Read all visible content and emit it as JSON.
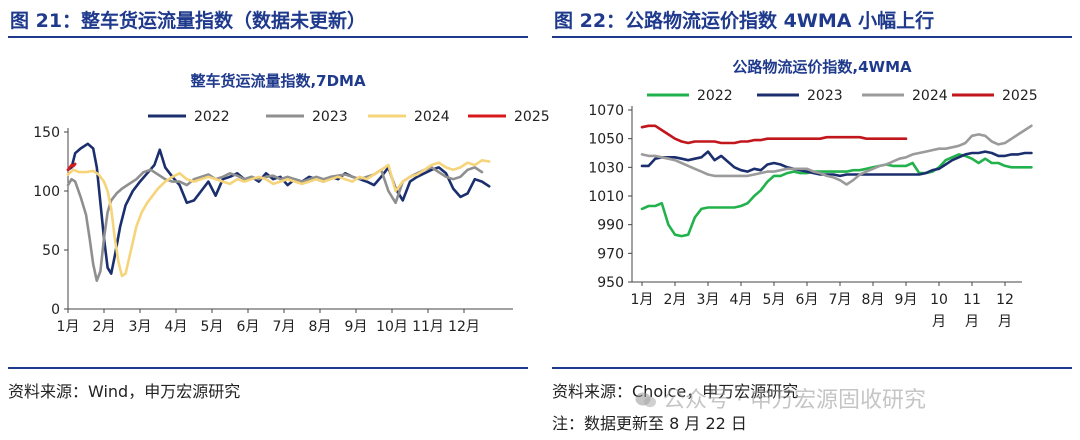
{
  "left": {
    "fig_title": "图 21：整车货运流量指数（数据未更新）",
    "source": "资料来源：Wind，申万宏源研究",
    "chart_data": {
      "type": "line",
      "title": "整车货运流量指数,7DMA",
      "xlabel": "",
      "ylabel": "",
      "ylim": [
        0,
        150
      ],
      "yticks": [
        0,
        50,
        100,
        150
      ],
      "categories": [
        "1月",
        "2月",
        "3月",
        "4月",
        "5月",
        "6月",
        "7月",
        "8月",
        "9月",
        "10月",
        "11月",
        "12月"
      ],
      "grid": false,
      "legend_position": "top",
      "series": [
        {
          "name": "2022",
          "color": "#1b2f6e",
          "x": [
            1,
            1.1,
            1.2,
            1.35,
            1.55,
            1.7,
            1.8,
            1.9,
            2.0,
            2.1,
            2.2,
            2.3,
            2.45,
            2.6,
            2.8,
            3.0,
            3.2,
            3.4,
            3.55,
            3.7,
            3.9,
            4.1,
            4.3,
            4.5,
            4.7,
            4.9,
            5.1,
            5.3,
            5.5,
            5.7,
            5.9,
            6.1,
            6.3,
            6.5,
            6.7,
            6.9,
            7.1,
            7.3,
            7.5,
            7.7,
            7.9,
            8.1,
            8.3,
            8.5,
            8.7,
            8.9,
            9.1,
            9.3,
            9.5,
            9.7,
            9.9,
            10.1,
            10.3,
            10.5,
            10.7,
            10.9,
            11.1,
            11.3,
            11.5,
            11.7,
            11.9,
            12.1,
            12.3,
            12.5,
            12.7
          ],
          "values": [
            118,
            120,
            132,
            136,
            140,
            136,
            120,
            90,
            60,
            35,
            30,
            45,
            70,
            88,
            100,
            108,
            115,
            122,
            135,
            120,
            112,
            105,
            90,
            92,
            100,
            108,
            96,
            110,
            112,
            115,
            110,
            112,
            108,
            115,
            110,
            112,
            105,
            110,
            108,
            112,
            110,
            108,
            112,
            110,
            115,
            112,
            110,
            108,
            105,
            112,
            120,
            102,
            92,
            108,
            112,
            115,
            118,
            120,
            115,
            102,
            95,
            98,
            110,
            108,
            104
          ]
        },
        {
          "name": "2023",
          "color": "#8f8f8f",
          "x": [
            1,
            1.1,
            1.2,
            1.35,
            1.5,
            1.6,
            1.7,
            1.8,
            1.9,
            2.0,
            2.1,
            2.2,
            2.35,
            2.5,
            2.7,
            2.9,
            3.1,
            3.3,
            3.5,
            3.7,
            3.9,
            4.1,
            4.3,
            4.5,
            4.7,
            4.9,
            5.1,
            5.3,
            5.5,
            5.7,
            5.9,
            6.1,
            6.3,
            6.5,
            6.7,
            6.9,
            7.1,
            7.3,
            7.5,
            7.7,
            7.9,
            8.1,
            8.3,
            8.5,
            8.7,
            8.9,
            9.1,
            9.3,
            9.5,
            9.7,
            9.9,
            10.1,
            10.3,
            10.5,
            10.7,
            10.9,
            11.1,
            11.3,
            11.5,
            11.7,
            11.9,
            12.1,
            12.3,
            12.5
          ],
          "values": [
            105,
            110,
            108,
            95,
            80,
            60,
            38,
            24,
            32,
            60,
            82,
            92,
            98,
            102,
            106,
            110,
            116,
            118,
            114,
            110,
            108,
            108,
            105,
            110,
            112,
            114,
            110,
            112,
            115,
            113,
            110,
            112,
            110,
            112,
            113,
            110,
            112,
            110,
            108,
            110,
            112,
            110,
            112,
            113,
            114,
            112,
            110,
            112,
            114,
            118,
            100,
            90,
            108,
            112,
            115,
            118,
            120,
            116,
            112,
            110,
            112,
            118,
            120,
            116
          ]
        },
        {
          "name": "2024",
          "color": "#f6d47a",
          "x": [
            1,
            1.15,
            1.3,
            1.5,
            1.7,
            1.85,
            2.0,
            2.1,
            2.2,
            2.3,
            2.4,
            2.5,
            2.6,
            2.75,
            2.9,
            3.05,
            3.2,
            3.35,
            3.5,
            3.7,
            3.9,
            4.1,
            4.3,
            4.5,
            4.7,
            4.9,
            5.1,
            5.3,
            5.5,
            5.7,
            5.9,
            6.1,
            6.3,
            6.5,
            6.7,
            6.9,
            7.1,
            7.3,
            7.5,
            7.7,
            7.9,
            8.1,
            8.3,
            8.5,
            8.7,
            8.9,
            9.1,
            9.3,
            9.5,
            9.7,
            9.9,
            10.1,
            10.3,
            10.5,
            10.7,
            10.9,
            11.1,
            11.3,
            11.5,
            11.7,
            11.9,
            12.1,
            12.3,
            12.5,
            12.7
          ],
          "values": [
            114,
            118,
            116,
            116,
            117,
            114,
            108,
            100,
            85,
            60,
            40,
            28,
            30,
            50,
            70,
            82,
            90,
            96,
            102,
            108,
            112,
            115,
            110,
            108,
            110,
            112,
            110,
            108,
            106,
            110,
            108,
            110,
            112,
            110,
            106,
            108,
            110,
            108,
            106,
            108,
            110,
            108,
            110,
            112,
            110,
            108,
            112,
            110,
            114,
            118,
            122,
            100,
            108,
            112,
            114,
            118,
            122,
            124,
            120,
            118,
            120,
            124,
            122,
            126,
            125
          ]
        },
        {
          "name": "2025",
          "color": "#d7191c",
          "x": [
            1,
            1.05,
            1.1,
            1.15,
            1.2
          ],
          "values": [
            118,
            120,
            122,
            121,
            123
          ]
        }
      ]
    }
  },
  "right": {
    "fig_title": "图 22：公路物流运价指数 4WMA 小幅上行",
    "source": "资料来源：Choice，申万宏源研究",
    "note": "注：数据更新至 8 月 22 日",
    "chart_data": {
      "type": "line",
      "title": "公路物流运价指数,4WMA",
      "xlabel": "",
      "ylabel": "",
      "ylim": [
        950,
        1070
      ],
      "yticks": [
        950,
        970,
        990,
        1010,
        1030,
        1050,
        1070
      ],
      "categories": [
        "1月",
        "2月",
        "3月",
        "4月",
        "5月",
        "6月",
        "7月",
        "8月",
        "9月",
        "10 月",
        "11 月",
        "12 月"
      ],
      "grid": false,
      "legend_position": "top",
      "series": [
        {
          "name": "2022",
          "color": "#22b24c",
          "x": [
            1,
            1.2,
            1.4,
            1.6,
            1.8,
            2.0,
            2.2,
            2.4,
            2.6,
            2.8,
            3.0,
            3.2,
            3.4,
            3.6,
            3.8,
            4.0,
            4.2,
            4.4,
            4.6,
            4.8,
            5.0,
            5.2,
            5.4,
            5.6,
            5.8,
            6.0,
            6.2,
            6.4,
            6.6,
            6.8,
            7.0,
            7.2,
            7.4,
            7.6,
            7.8,
            8.0,
            8.2,
            8.4,
            8.6,
            8.8,
            9.0,
            9.2,
            9.4,
            9.6,
            9.8,
            10.0,
            10.2,
            10.4,
            10.6,
            10.8,
            11.0,
            11.2,
            11.4,
            11.6,
            11.8,
            12.0,
            12.2,
            12.4,
            12.6,
            12.8
          ],
          "values": [
            1001,
            1003,
            1003,
            1005,
            990,
            983,
            982,
            983,
            995,
            1001,
            1002,
            1002,
            1002,
            1002,
            1002,
            1003,
            1005,
            1010,
            1014,
            1020,
            1024,
            1024,
            1026,
            1027,
            1026,
            1026,
            1027,
            1027,
            1027,
            1027,
            1027,
            1027,
            1028,
            1028,
            1029,
            1030,
            1031,
            1032,
            1031,
            1031,
            1031,
            1033,
            1026,
            1026,
            1027,
            1030,
            1035,
            1037,
            1039,
            1038,
            1036,
            1033,
            1036,
            1033,
            1033,
            1031,
            1030,
            1030,
            1030,
            1030
          ]
        },
        {
          "name": "2023",
          "color": "#1b2f6e",
          "x": [
            1,
            1.2,
            1.4,
            1.6,
            1.8,
            2.0,
            2.2,
            2.4,
            2.6,
            2.8,
            3.0,
            3.2,
            3.4,
            3.6,
            3.8,
            4.0,
            4.2,
            4.4,
            4.6,
            4.8,
            5.0,
            5.2,
            5.4,
            5.6,
            5.8,
            6.0,
            6.2,
            6.4,
            6.6,
            6.8,
            7.0,
            7.2,
            7.4,
            7.6,
            7.8,
            8.0,
            8.2,
            8.4,
            8.6,
            8.8,
            9.0,
            9.2,
            9.4,
            9.6,
            9.8,
            10.0,
            10.2,
            10.4,
            10.6,
            10.8,
            11.0,
            11.2,
            11.4,
            11.6,
            11.8,
            12.0,
            12.2,
            12.4,
            12.6,
            12.8
          ],
          "values": [
            1031,
            1031,
            1036,
            1037,
            1037,
            1037,
            1036,
            1035,
            1036,
            1037,
            1041,
            1035,
            1038,
            1034,
            1030,
            1028,
            1027,
            1029,
            1028,
            1032,
            1033,
            1032,
            1030,
            1029,
            1028,
            1027,
            1026,
            1025,
            1025,
            1025,
            1024,
            1025,
            1025,
            1025,
            1025,
            1025,
            1025,
            1025,
            1025,
            1025,
            1025,
            1025,
            1025,
            1026,
            1028,
            1029,
            1032,
            1035,
            1037,
            1039,
            1040,
            1040,
            1041,
            1040,
            1038,
            1038,
            1039,
            1039,
            1040,
            1040
          ]
        },
        {
          "name": "2024",
          "color": "#9b9b9b",
          "x": [
            1,
            1.2,
            1.4,
            1.6,
            1.8,
            2.0,
            2.2,
            2.4,
            2.6,
            2.8,
            3.0,
            3.2,
            3.4,
            3.6,
            3.8,
            4.0,
            4.2,
            4.4,
            4.6,
            4.8,
            5.0,
            5.2,
            5.4,
            5.6,
            5.8,
            6.0,
            6.2,
            6.4,
            6.6,
            6.8,
            7.0,
            7.2,
            7.4,
            7.6,
            7.8,
            8.0,
            8.2,
            8.4,
            8.6,
            8.8,
            9.0,
            9.2,
            9.4,
            9.6,
            9.8,
            10.0,
            10.2,
            10.4,
            10.6,
            10.8,
            11.0,
            11.2,
            11.4,
            11.6,
            11.8,
            12.0,
            12.2,
            12.4,
            12.6,
            12.8
          ],
          "values": [
            1039,
            1038,
            1038,
            1037,
            1036,
            1035,
            1033,
            1031,
            1029,
            1027,
            1025,
            1024,
            1024,
            1024,
            1024,
            1024,
            1024,
            1025,
            1026,
            1027,
            1027,
            1028,
            1029,
            1029,
            1029,
            1029,
            1027,
            1026,
            1024,
            1023,
            1021,
            1018,
            1021,
            1025,
            1027,
            1029,
            1031,
            1032,
            1034,
            1036,
            1037,
            1039,
            1040,
            1041,
            1042,
            1043,
            1043,
            1044,
            1045,
            1047,
            1052,
            1053,
            1052,
            1048,
            1046,
            1047,
            1050,
            1053,
            1056,
            1059
          ]
        },
        {
          "name": "2025",
          "color": "#c0161c",
          "x": [
            1,
            1.2,
            1.4,
            1.6,
            1.8,
            2.0,
            2.2,
            2.4,
            2.6,
            2.8,
            3.0,
            3.2,
            3.4,
            3.6,
            3.8,
            4.0,
            4.2,
            4.4,
            4.6,
            4.8,
            5.0,
            5.2,
            5.4,
            5.6,
            5.8,
            6.0,
            6.2,
            6.4,
            6.6,
            6.8,
            7.0,
            7.2,
            7.4,
            7.6,
            7.8,
            8.0,
            8.2,
            8.4,
            8.6,
            8.8,
            9.0
          ],
          "values": [
            1058,
            1059,
            1059,
            1056,
            1053,
            1050,
            1048,
            1047,
            1048,
            1048,
            1048,
            1048,
            1047,
            1047,
            1047,
            1048,
            1048,
            1049,
            1049,
            1050,
            1050,
            1050,
            1050,
            1050,
            1050,
            1050,
            1050,
            1050,
            1051,
            1051,
            1051,
            1051,
            1051,
            1051,
            1050,
            1050,
            1050,
            1050,
            1050,
            1050,
            1050
          ]
        }
      ]
    }
  },
  "watermark": "公众号 · 申万宏源固收研究"
}
